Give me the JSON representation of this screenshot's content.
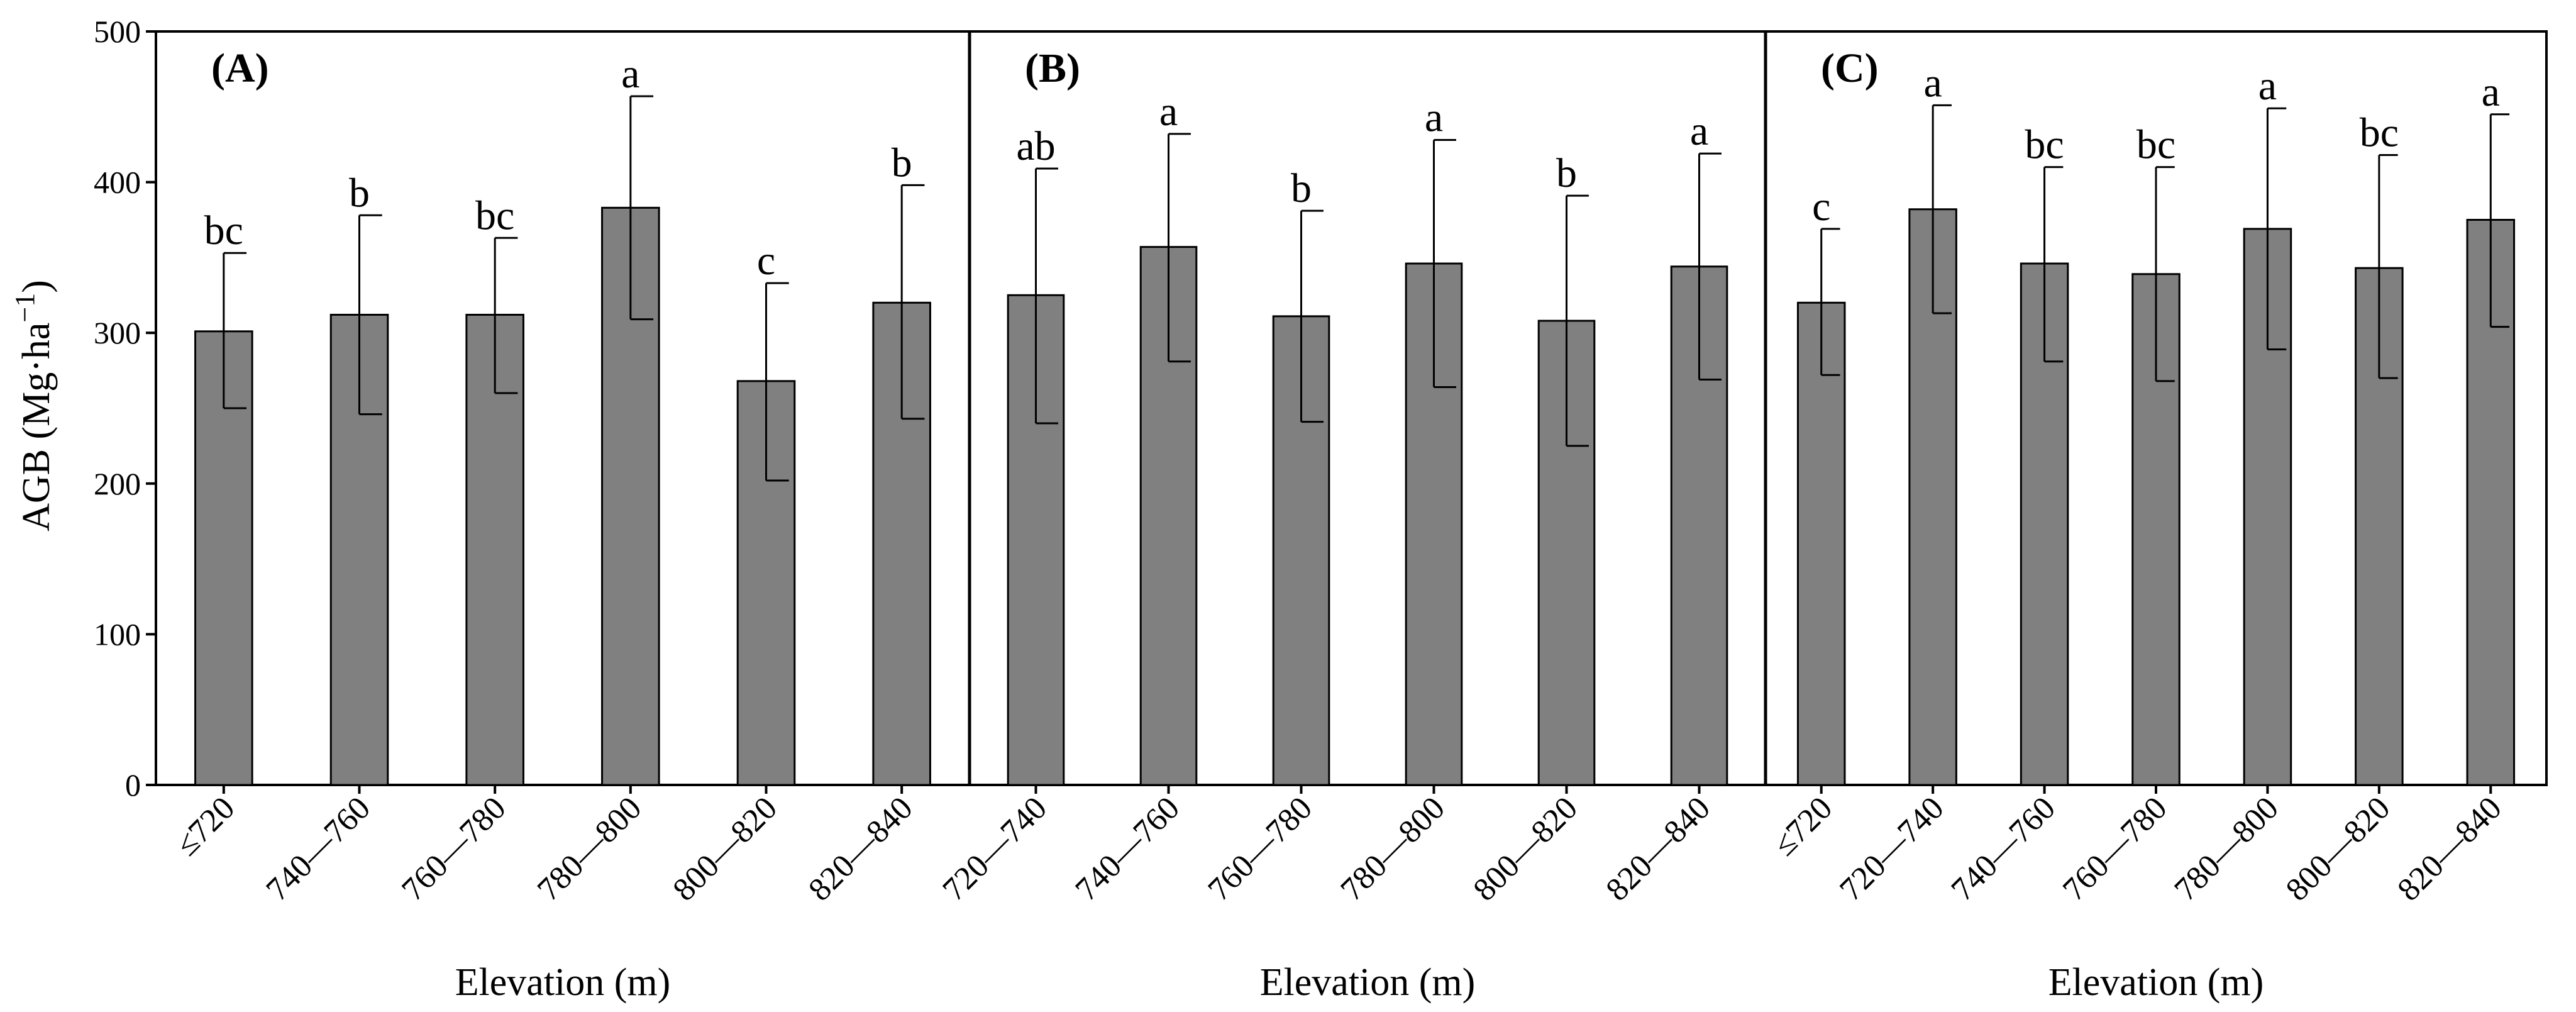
{
  "chart_data": {
    "type": "bar",
    "ylabel": "AGB (Mg·ha",
    "ylabel_sup": "−1",
    "ylabel_close": ")",
    "xlabel": "Elevation (m)",
    "ylim": [
      0,
      500
    ],
    "yticks": [
      0,
      100,
      200,
      300,
      400,
      500
    ],
    "bar_color": "#808080",
    "panels": [
      {
        "label": "(A)",
        "categories": [
          "≤720",
          "740—760",
          "760—780",
          "780—800",
          "800—820",
          "820—840"
        ],
        "values": [
          301,
          312,
          312,
          383,
          268,
          320
        ],
        "error_upper": [
          353,
          378,
          363,
          457,
          333,
          398
        ],
        "error_lower": [
          250,
          246,
          260,
          309,
          202,
          243
        ],
        "letters": [
          "bc",
          "b",
          "bc",
          "a",
          "c",
          "b"
        ]
      },
      {
        "label": "(B)",
        "categories": [
          "720—740",
          "740—760",
          "760—780",
          "780—800",
          "800—820",
          "820—840"
        ],
        "values": [
          325,
          357,
          311,
          346,
          308,
          344
        ],
        "error_upper": [
          409,
          432,
          381,
          428,
          391,
          419
        ],
        "error_lower": [
          240,
          281,
          241,
          264,
          225,
          269
        ],
        "letters": [
          "ab",
          "a",
          "b",
          "a",
          "b",
          "a"
        ]
      },
      {
        "label": "(C)",
        "categories": [
          "≤720",
          "720—740",
          "740—760",
          "760—780",
          "780—800",
          "800—820",
          "820—840"
        ],
        "values": [
          320,
          382,
          346,
          339,
          369,
          343,
          375
        ],
        "error_upper": [
          369,
          451,
          410,
          410,
          449,
          418,
          445
        ],
        "error_lower": [
          272,
          313,
          281,
          268,
          289,
          270,
          304
        ],
        "letters": [
          "c",
          "a",
          "bc",
          "bc",
          "a",
          "bc",
          "a"
        ]
      }
    ]
  }
}
